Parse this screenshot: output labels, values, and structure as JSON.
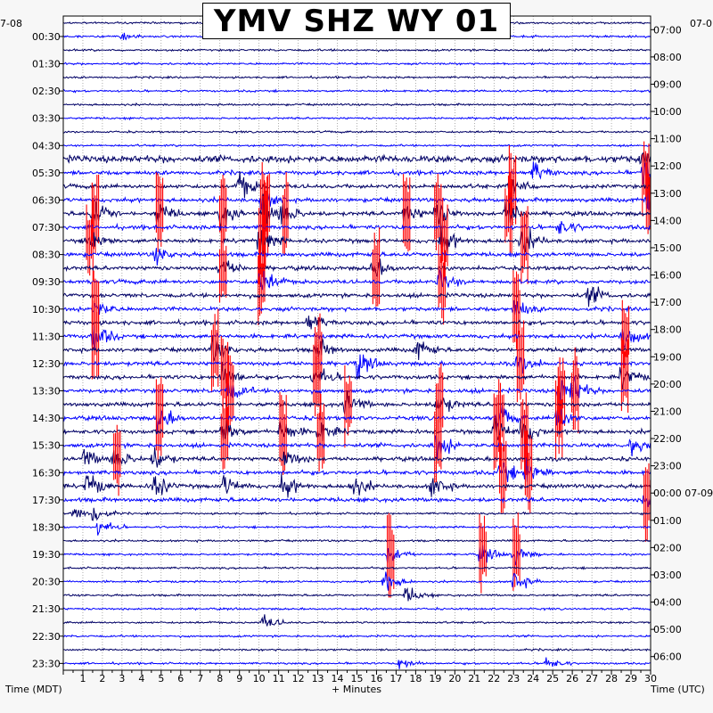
{
  "title": "YMV SHZ WY 01",
  "left_date": "7-08",
  "right_date": "07-0",
  "right_date_change": "00:00 07-09",
  "xlabel": "+ Minutes",
  "left_axis_label": "Time (MDT)",
  "right_axis_label": "Time (UTC)",
  "colors": {
    "trace_dark": "#000066",
    "trace_blue": "#0000ff",
    "clip": "#ff0000",
    "background": "#ffffff",
    "grid": "#777777"
  },
  "chart_data": {
    "type": "helicorder",
    "title": "YMV SHZ WY 01",
    "xlabel": "+ Minutes",
    "xlim": [
      0,
      30
    ],
    "x_ticks": [
      "1",
      "2",
      "3",
      "4",
      "5",
      "6",
      "7",
      "8",
      "9",
      "10",
      "11",
      "12",
      "13",
      "14",
      "15",
      "16",
      "17",
      "18",
      "19",
      "20",
      "21",
      "22",
      "23",
      "24",
      "25",
      "26",
      "27",
      "28",
      "29",
      "30"
    ],
    "rows_per_hour": 2,
    "row_minutes": 30,
    "row_count": 48,
    "left_ticks": [
      "00:30",
      "01:30",
      "02:30",
      "03:30",
      "04:30",
      "05:30",
      "06:30",
      "07:30",
      "08:30",
      "09:30",
      "10:30",
      "11:30",
      "12:30",
      "13:30",
      "14:30",
      "15:30",
      "16:30",
      "17:30",
      "18:30",
      "19:30",
      "20:30",
      "21:30",
      "22:30",
      "23:30"
    ],
    "right_ticks": [
      "07:00",
      "08:00",
      "09:00",
      "10:00",
      "11:00",
      "12:00",
      "13:00",
      "14:00",
      "15:00",
      "16:00",
      "17:00",
      "18:00",
      "19:00",
      "20:00",
      "21:00",
      "22:00",
      "23:00",
      "00:00 07-09",
      "01:00",
      "02:00",
      "03:00",
      "04:00",
      "05:00",
      "06:00"
    ],
    "grid": true,
    "trace_color_cycle": [
      "#000066",
      "#0000ff"
    ],
    "events": [
      {
        "row": 1,
        "minute": 3.0,
        "amp": 0.6
      },
      {
        "row": 10,
        "minute": 29.5,
        "amp": 1.4
      },
      {
        "row": 11,
        "minute": 24.0,
        "amp": 1.8
      },
      {
        "row": 11,
        "minute": 29.6,
        "amp": 2.5,
        "clip": true
      },
      {
        "row": 12,
        "minute": 9.0,
        "amp": 2.5
      },
      {
        "row": 12,
        "minute": 22.8,
        "amp": 2.6,
        "clip": true
      },
      {
        "row": 13,
        "minute": 10.1,
        "amp": 2.0,
        "clip": true
      },
      {
        "row": 13,
        "minute": 29.8,
        "amp": 2.8,
        "clip": true
      },
      {
        "row": 14,
        "minute": 1.5,
        "amp": 2.8,
        "clip": true
      },
      {
        "row": 14,
        "minute": 4.8,
        "amp": 2.2,
        "clip": true
      },
      {
        "row": 14,
        "minute": 8.0,
        "amp": 2.6,
        "clip": true
      },
      {
        "row": 14,
        "minute": 10.2,
        "amp": 3.0,
        "clip": true
      },
      {
        "row": 14,
        "minute": 11.2,
        "amp": 2.4,
        "clip": true
      },
      {
        "row": 14,
        "minute": 17.4,
        "amp": 2.2,
        "clip": true
      },
      {
        "row": 14,
        "minute": 19.0,
        "amp": 2.8,
        "clip": true
      },
      {
        "row": 14,
        "minute": 22.6,
        "amp": 3.0,
        "clip": true
      },
      {
        "row": 15,
        "minute": 25.3,
        "amp": 1.6
      },
      {
        "row": 16,
        "minute": 1.2,
        "amp": 2.6,
        "clip": true
      },
      {
        "row": 16,
        "minute": 10.0,
        "amp": 3.0,
        "clip": true
      },
      {
        "row": 16,
        "minute": 19.3,
        "amp": 2.6,
        "clip": true
      },
      {
        "row": 16,
        "minute": 23.4,
        "amp": 2.6,
        "clip": true
      },
      {
        "row": 17,
        "minute": 4.7,
        "amp": 1.6
      },
      {
        "row": 18,
        "minute": 8.0,
        "amp": 2.4,
        "clip": true
      },
      {
        "row": 18,
        "minute": 15.8,
        "amp": 2.0,
        "clip": true
      },
      {
        "row": 19,
        "minute": 10.0,
        "amp": 3.0,
        "clip": true
      },
      {
        "row": 19,
        "minute": 19.2,
        "amp": 2.4,
        "clip": true
      },
      {
        "row": 20,
        "minute": 26.8,
        "amp": 2.0
      },
      {
        "row": 21,
        "minute": 1.5,
        "amp": 2.2,
        "clip": true
      },
      {
        "row": 21,
        "minute": 23.0,
        "amp": 2.2,
        "clip": true
      },
      {
        "row": 22,
        "minute": 12.5,
        "amp": 1.8
      },
      {
        "row": 23,
        "minute": 1.5,
        "amp": 2.8,
        "clip": true
      },
      {
        "row": 23,
        "minute": 28.6,
        "amp": 2.6,
        "clip": true
      },
      {
        "row": 24,
        "minute": 7.6,
        "amp": 2.4,
        "clip": true
      },
      {
        "row": 24,
        "minute": 12.9,
        "amp": 2.2,
        "clip": true
      },
      {
        "row": 24,
        "minute": 18.0,
        "amp": 2.0
      },
      {
        "row": 25,
        "minute": 15.0,
        "amp": 2.2
      },
      {
        "row": 25,
        "minute": 23.2,
        "amp": 2.4,
        "clip": true
      },
      {
        "row": 26,
        "minute": 8.1,
        "amp": 2.6,
        "clip": true
      },
      {
        "row": 26,
        "minute": 12.8,
        "amp": 2.4,
        "clip": true
      },
      {
        "row": 26,
        "minute": 28.5,
        "amp": 2.0,
        "clip": true
      },
      {
        "row": 27,
        "minute": 8.4,
        "amp": 2.2,
        "clip": true
      },
      {
        "row": 27,
        "minute": 25.3,
        "amp": 2.6,
        "clip": true
      },
      {
        "row": 27,
        "minute": 26.0,
        "amp": 2.4,
        "clip": true
      },
      {
        "row": 28,
        "minute": 14.4,
        "amp": 2.6,
        "clip": true
      },
      {
        "row": 28,
        "minute": 19.1,
        "amp": 2.4,
        "clip": true
      },
      {
        "row": 29,
        "minute": 4.8,
        "amp": 2.6,
        "clip": true
      },
      {
        "row": 29,
        "minute": 22.2,
        "amp": 2.2,
        "clip": true
      },
      {
        "row": 29,
        "minute": 25.2,
        "amp": 2.6,
        "clip": true
      },
      {
        "row": 30,
        "minute": 8.1,
        "amp": 2.4,
        "clip": true
      },
      {
        "row": 30,
        "minute": 11.1,
        "amp": 2.4,
        "clip": true
      },
      {
        "row": 30,
        "minute": 13.0,
        "amp": 2.4,
        "clip": true
      },
      {
        "row": 30,
        "minute": 22.0,
        "amp": 2.6,
        "clip": true
      },
      {
        "row": 30,
        "minute": 23.4,
        "amp": 2.6,
        "clip": true
      },
      {
        "row": 31,
        "minute": 19.0,
        "amp": 2.8,
        "clip": true
      },
      {
        "row": 31,
        "minute": 29.0,
        "amp": 2.0
      },
      {
        "row": 32,
        "minute": 1.0,
        "amp": 2.0
      },
      {
        "row": 32,
        "minute": 2.6,
        "amp": 2.4,
        "clip": true
      },
      {
        "row": 32,
        "minute": 4.6,
        "amp": 2.0
      },
      {
        "row": 32,
        "minute": 11.2,
        "amp": 2.4
      },
      {
        "row": 33,
        "minute": 22.3,
        "amp": 2.4,
        "clip": true
      },
      {
        "row": 33,
        "minute": 23.6,
        "amp": 2.4,
        "clip": true
      },
      {
        "row": 34,
        "minute": 1.2,
        "amp": 2.4
      },
      {
        "row": 34,
        "minute": 4.6,
        "amp": 2.6
      },
      {
        "row": 34,
        "minute": 8.2,
        "amp": 2.0
      },
      {
        "row": 34,
        "minute": 11.2,
        "amp": 2.2
      },
      {
        "row": 34,
        "minute": 14.7,
        "amp": 2.2
      },
      {
        "row": 34,
        "minute": 18.8,
        "amp": 2.0
      },
      {
        "row": 35,
        "minute": 29.7,
        "amp": 1.8,
        "clip": true
      },
      {
        "row": 36,
        "minute": 0.5,
        "amp": 1.6
      },
      {
        "row": 36,
        "minute": 1.5,
        "amp": 1.6
      },
      {
        "row": 37,
        "minute": 1.8,
        "amp": 1.6
      },
      {
        "row": 39,
        "minute": 16.6,
        "amp": 2.0,
        "clip": true
      },
      {
        "row": 39,
        "minute": 21.3,
        "amp": 1.8,
        "clip": true
      },
      {
        "row": 39,
        "minute": 23.0,
        "amp": 1.8,
        "clip": true
      },
      {
        "row": 41,
        "minute": 16.4,
        "amp": 2.2
      },
      {
        "row": 41,
        "minute": 23.0,
        "amp": 2.0
      },
      {
        "row": 42,
        "minute": 17.5,
        "amp": 1.6
      },
      {
        "row": 44,
        "minute": 10.2,
        "amp": 1.4
      },
      {
        "row": 47,
        "minute": 17.2,
        "amp": 1.2
      },
      {
        "row": 47,
        "minute": 24.6,
        "amp": 1.4
      }
    ]
  }
}
